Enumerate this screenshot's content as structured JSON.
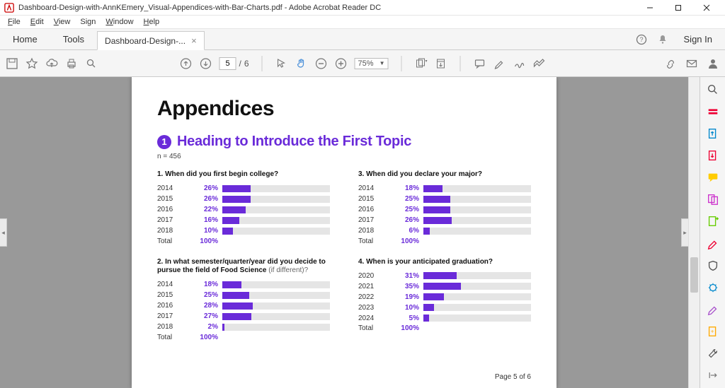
{
  "window": {
    "title": "Dashboard-Design-with-AnnKEmery_Visual-Appendices-with-Bar-Charts.pdf - Adobe Acrobat Reader DC"
  },
  "menu": {
    "items": [
      "File",
      "Edit",
      "View",
      "Sign",
      "Window",
      "Help"
    ]
  },
  "tabs": {
    "home": "Home",
    "tools": "Tools",
    "doc": "Dashboard-Design-...",
    "signin": "Sign In"
  },
  "toolbar": {
    "page_current": "5",
    "page_sep": "/",
    "page_total": "6",
    "zoom": "75%"
  },
  "doc": {
    "title": "Appendices",
    "topic_num": "1",
    "topic": "Heading to Introduce the First Topic",
    "n": "n = 456",
    "footer": "Page 5 of 6",
    "colors": {
      "accent": "#6a2bd9",
      "track": "#e5e5e5",
      "text": "#111"
    },
    "charts": [
      {
        "q_strong": "1. When did you first begin college?",
        "q_sub": "",
        "rows": [
          {
            "label": "2014",
            "pct": 26
          },
          {
            "label": "2015",
            "pct": 26
          },
          {
            "label": "2016",
            "pct": 22
          },
          {
            "label": "2017",
            "pct": 16
          },
          {
            "label": "2018",
            "pct": 10
          }
        ],
        "total_label": "Total",
        "total_pct": "100%"
      },
      {
        "q_strong": "3. When did you declare your major?",
        "q_sub": "",
        "rows": [
          {
            "label": "2014",
            "pct": 18
          },
          {
            "label": "2015",
            "pct": 25
          },
          {
            "label": "2016",
            "pct": 25
          },
          {
            "label": "2017",
            "pct": 26
          },
          {
            "label": "2018",
            "pct": 6
          }
        ],
        "total_label": "Total",
        "total_pct": "100%"
      },
      {
        "q_strong": "2. In what semester/quarter/year did you decide to pursue the field of Food Science",
        "q_sub": " (if different)?",
        "rows": [
          {
            "label": "2014",
            "pct": 18
          },
          {
            "label": "2015",
            "pct": 25
          },
          {
            "label": "2016",
            "pct": 28
          },
          {
            "label": "2017",
            "pct": 27
          },
          {
            "label": "2018",
            "pct": 2
          }
        ],
        "total_label": "Total",
        "total_pct": "100%"
      },
      {
        "q_strong": "4. When is your anticipated graduation?",
        "q_sub": "",
        "rows": [
          {
            "label": "2020",
            "pct": 31
          },
          {
            "label": "2021",
            "pct": 35
          },
          {
            "label": "2022",
            "pct": 19
          },
          {
            "label": "2023",
            "pct": 10
          },
          {
            "label": "2024",
            "pct": 5
          }
        ],
        "total_label": "Total",
        "total_pct": "100%"
      }
    ]
  }
}
